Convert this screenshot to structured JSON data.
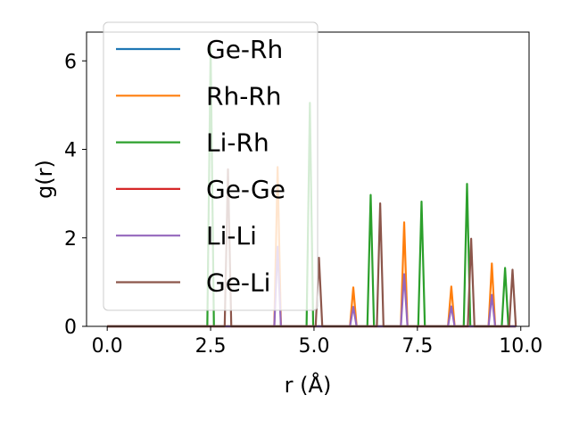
{
  "chart_data": {
    "type": "line",
    "title": "",
    "xlabel": "r (Å)",
    "ylabel": "g(r)",
    "xlim": [
      -0.5,
      10.2
    ],
    "ylim": [
      0,
      6.65
    ],
    "xticks": [
      0.0,
      2.5,
      5.0,
      7.5,
      10.0
    ],
    "xtick_labels": [
      "0.0",
      "2.5",
      "5.0",
      "7.5",
      "10.0"
    ],
    "yticks": [
      0,
      2,
      4,
      6
    ],
    "ytick_labels": [
      "0",
      "2",
      "4",
      "6"
    ],
    "grid": false,
    "legend_position": "upper-left",
    "series": [
      {
        "name": "Ge-Rh",
        "color": "#1f77b4",
        "peaks": []
      },
      {
        "name": "Rh-Rh",
        "color": "#ff7f0e",
        "peaks": [
          [
            4.12,
            3.6
          ],
          [
            5.95,
            0.88
          ],
          [
            7.18,
            2.35
          ],
          [
            8.32,
            0.9
          ],
          [
            9.3,
            1.42
          ]
        ]
      },
      {
        "name": "Li-Rh",
        "color": "#2ca02c",
        "peaks": [
          [
            2.5,
            6.3
          ],
          [
            4.9,
            5.05
          ],
          [
            6.37,
            2.97
          ],
          [
            7.6,
            2.82
          ],
          [
            8.7,
            3.22
          ],
          [
            9.62,
            1.32
          ]
        ]
      },
      {
        "name": "Ge-Ge",
        "color": "#d62728",
        "peaks": []
      },
      {
        "name": "Li-Li",
        "color": "#9467bd",
        "peaks": [
          [
            4.12,
            1.8
          ],
          [
            5.95,
            0.44
          ],
          [
            7.18,
            1.18
          ],
          [
            8.32,
            0.45
          ],
          [
            9.3,
            0.71
          ]
        ]
      },
      {
        "name": "Ge-Li",
        "color": "#8c564b",
        "peaks": [
          [
            2.92,
            3.55
          ],
          [
            5.12,
            1.55
          ],
          [
            6.6,
            2.78
          ],
          [
            8.8,
            1.98
          ],
          [
            9.8,
            1.28
          ]
        ]
      }
    ]
  }
}
